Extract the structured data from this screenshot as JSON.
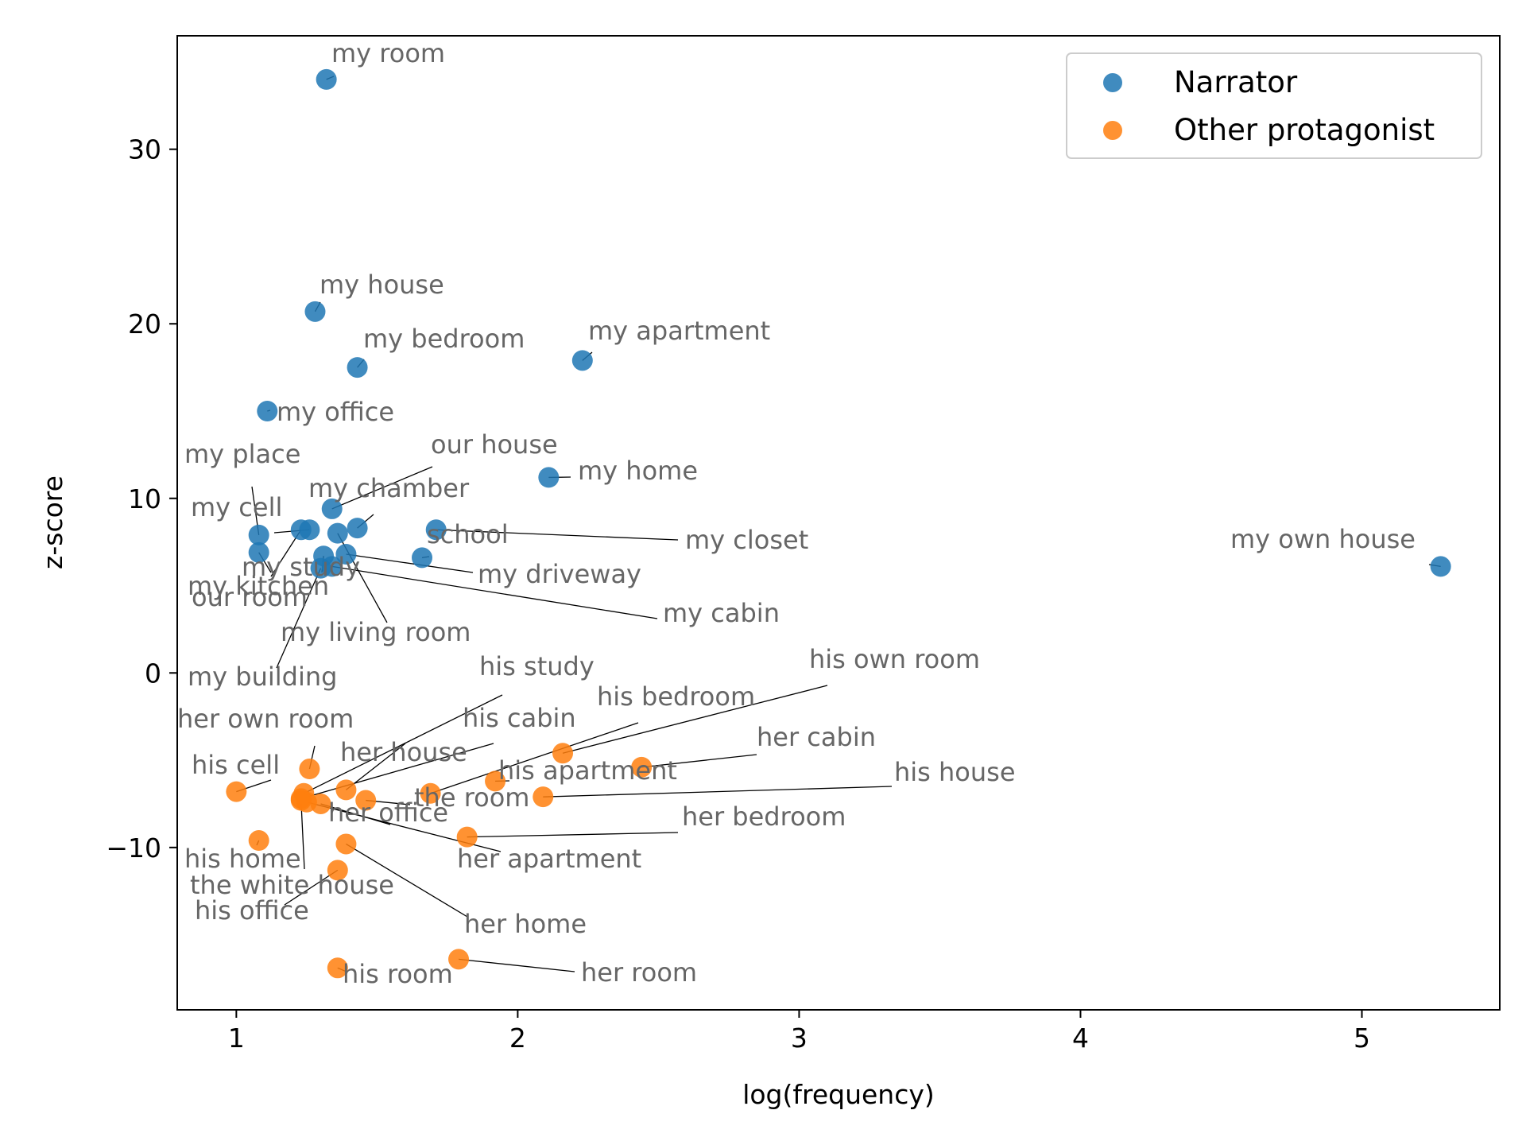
{
  "chart_data": {
    "type": "scatter",
    "xlabel": "log(frequency)",
    "ylabel": "z-score",
    "xlim": [
      0.79,
      5.49
    ],
    "ylim": [
      -19.3,
      36.5
    ],
    "xticks": [
      1,
      2,
      3,
      4,
      5
    ],
    "yticks": [
      30,
      20,
      10,
      0,
      -10
    ],
    "ytick_labels": [
      "30",
      "20",
      "10",
      "0",
      "−10"
    ],
    "grid": false,
    "legend_position": "top-right",
    "series": [
      {
        "name": "Narrator",
        "color": "#1f77b4",
        "points": [
          {
            "label": "my room",
            "x": 1.32,
            "y": 34.0
          },
          {
            "label": "my house",
            "x": 1.28,
            "y": 20.7
          },
          {
            "label": "my bedroom",
            "x": 1.43,
            "y": 17.5
          },
          {
            "label": "my apartment",
            "x": 2.23,
            "y": 17.9
          },
          {
            "label": "my office",
            "x": 1.11,
            "y": 15.0
          },
          {
            "label": "my home",
            "x": 2.11,
            "y": 11.2
          },
          {
            "label": "our house",
            "x": 1.34,
            "y": 9.4
          },
          {
            "label": "my chamber",
            "x": 1.43,
            "y": 8.3
          },
          {
            "label": "my place",
            "x": 1.08,
            "y": 7.9
          },
          {
            "label": "my cell",
            "x": 1.26,
            "y": 8.2
          },
          {
            "label": "my kitchen",
            "x": 1.23,
            "y": 8.2
          },
          {
            "label": "my closet",
            "x": 1.71,
            "y": 8.2
          },
          {
            "label": "my living room",
            "x": 1.36,
            "y": 8.0
          },
          {
            "label": "school",
            "x": 1.66,
            "y": 6.6
          },
          {
            "label": "our room",
            "x": 1.08,
            "y": 6.9
          },
          {
            "label": "my driveway",
            "x": 1.39,
            "y": 6.8
          },
          {
            "label": "my study",
            "x": 1.31,
            "y": 6.7
          },
          {
            "label": "my cabin",
            "x": 1.34,
            "y": 6.1
          },
          {
            "label": "my building",
            "x": 1.3,
            "y": 6.0
          },
          {
            "label": "my own house",
            "x": 5.28,
            "y": 6.1
          }
        ]
      },
      {
        "name": "Other protagonist",
        "color": "#ff7f0e",
        "points": [
          {
            "label": "his cell",
            "x": 1.0,
            "y": -6.8
          },
          {
            "label": "her own room",
            "x": 1.26,
            "y": -5.5
          },
          {
            "label": "his study",
            "x": 1.24,
            "y": -6.9
          },
          {
            "label": "his cabin",
            "x": 1.23,
            "y": -7.2
          },
          {
            "label": "her house",
            "x": 1.39,
            "y": -6.7
          },
          {
            "label": "the room",
            "x": 1.46,
            "y": -7.3
          },
          {
            "label": "his bedroom",
            "x": 1.69,
            "y": -6.9
          },
          {
            "label": "his own room",
            "x": 2.16,
            "y": -4.6
          },
          {
            "label": "her cabin",
            "x": 2.44,
            "y": -5.4
          },
          {
            "label": "his apartment",
            "x": 1.92,
            "y": -6.2
          },
          {
            "label": "his house",
            "x": 2.09,
            "y": -7.1
          },
          {
            "label": "her office",
            "x": 1.3,
            "y": -7.5
          },
          {
            "label": "her bedroom",
            "x": 1.82,
            "y": -9.4
          },
          {
            "label": "her apartment",
            "x": 1.25,
            "y": -7.4
          },
          {
            "label": "his home",
            "x": 1.08,
            "y": -9.6
          },
          {
            "label": "the white house",
            "x": 1.23,
            "y": -7.3
          },
          {
            "label": "his office",
            "x": 1.36,
            "y": -11.3
          },
          {
            "label": "her home",
            "x": 1.39,
            "y": -9.8
          },
          {
            "label": "her room",
            "x": 1.79,
            "y": -16.4
          },
          {
            "label": "his room",
            "x": 1.36,
            "y": -16.9
          }
        ]
      }
    ]
  }
}
